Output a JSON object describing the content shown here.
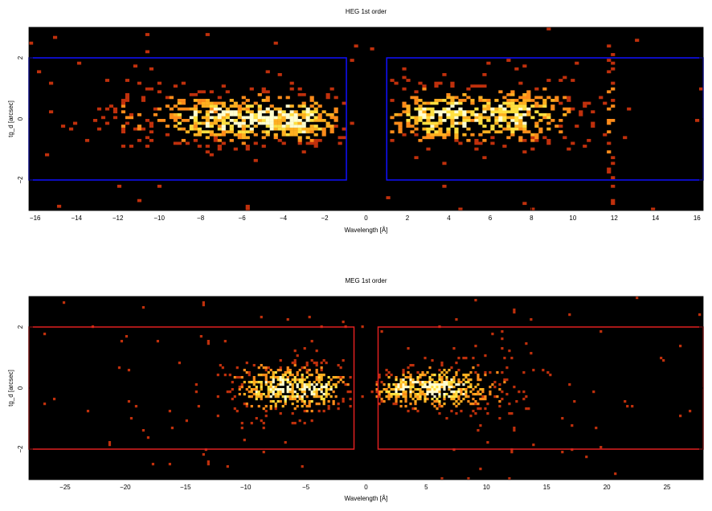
{
  "chart_data": [
    {
      "type": "heatmap",
      "title": "HEG 1st order",
      "xlabel": "Wavelength [Å]",
      "ylabel": "tg_d [arcsec]",
      "xlim": [
        -16.3,
        16.3
      ],
      "ylim": [
        -3.0,
        3.0
      ],
      "x_ticks": [
        -16,
        -14,
        -12,
        -10,
        -8,
        -6,
        -4,
        -2,
        0,
        2,
        4,
        6,
        8,
        10,
        12,
        14,
        16
      ],
      "y_ticks": [
        -2,
        0,
        2
      ],
      "background_color": "#000000",
      "colormap": [
        "#c0300c",
        "#ff8c1a",
        "#ffb020",
        "#ffe040",
        "#ffffd0"
      ],
      "extraction_box_color": "#1010ff",
      "extraction_boxes": [
        {
          "x": [
            -16.3,
            -0.95
          ],
          "y": [
            -2.0,
            2.0
          ]
        },
        {
          "x": [
            1.0,
            16.3
          ],
          "y": [
            -2.0,
            2.0
          ]
        }
      ],
      "emission_clumps": [
        {
          "x": -7.3,
          "y": 0.0,
          "sx": 1.6,
          "sy": 0.45,
          "weight": 0.9
        },
        {
          "x": -3.2,
          "y": 0.0,
          "sx": 1.2,
          "sy": 0.45,
          "weight": 1.0
        },
        {
          "x": -5.3,
          "y": 0.0,
          "sx": 0.9,
          "sy": 0.45,
          "weight": 0.4
        },
        {
          "x": -11.0,
          "y": 0.2,
          "sx": 1.4,
          "sy": 0.6,
          "weight": 0.25
        },
        {
          "x": 3.5,
          "y": 0.1,
          "sx": 1.4,
          "sy": 0.5,
          "weight": 1.0
        },
        {
          "x": 6.8,
          "y": 0.1,
          "sx": 1.3,
          "sy": 0.5,
          "weight": 0.85
        },
        {
          "x": 9.0,
          "y": 0.2,
          "sx": 1.0,
          "sy": 0.6,
          "weight": 0.3
        },
        {
          "x": 11.8,
          "y": 0.0,
          "sx": 0.15,
          "sy": 1.6,
          "weight": 0.35
        }
      ]
    },
    {
      "type": "heatmap",
      "title": "MEG 1st order",
      "xlabel": "Wavelength [Å]",
      "ylabel": "tg_d [arcsec]",
      "xlim": [
        -28.0,
        28.0
      ],
      "ylim": [
        -3.0,
        3.0
      ],
      "x_ticks": [
        -25,
        -20,
        -15,
        -10,
        -5,
        0,
        5,
        10,
        15,
        20,
        25
      ],
      "y_ticks": [
        -2,
        0,
        2
      ],
      "background_color": "#000000",
      "colormap": [
        "#c0300c",
        "#ff8c1a",
        "#ffb020",
        "#ffe040",
        "#ffffd0"
      ],
      "extraction_box_color": "#e02020",
      "extraction_boxes": [
        {
          "x": [
            -28.0,
            -1.0
          ],
          "y": [
            -2.0,
            2.0
          ]
        },
        {
          "x": [
            1.0,
            28.0
          ],
          "y": [
            -2.0,
            2.0
          ]
        }
      ],
      "emission_clumps": [
        {
          "x": -7.2,
          "y": 0.0,
          "sx": 2.2,
          "sy": 0.45,
          "weight": 1.0
        },
        {
          "x": -3.3,
          "y": 0.0,
          "sx": 1.2,
          "sy": 0.4,
          "weight": 0.7
        },
        {
          "x": 3.0,
          "y": 0.0,
          "sx": 1.5,
          "sy": 0.35,
          "weight": 0.8
        },
        {
          "x": 6.6,
          "y": 0.0,
          "sx": 1.7,
          "sy": 0.4,
          "weight": 1.0
        },
        {
          "x": 10.5,
          "y": 0.1,
          "sx": 1.6,
          "sy": 0.6,
          "weight": 0.25
        }
      ]
    }
  ]
}
